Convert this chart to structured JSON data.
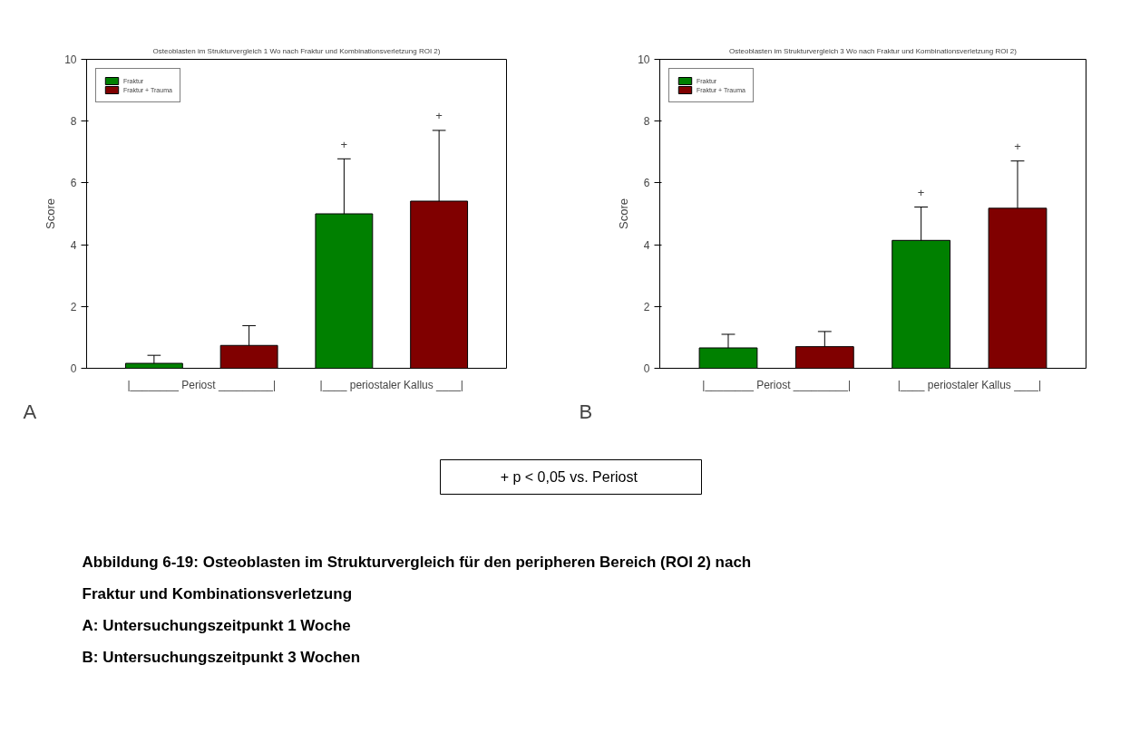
{
  "chart_data": [
    {
      "type": "bar",
      "title": "Osteoblasten im Strukturvergleich 1 Wo nach Fraktur und Kombinationsverletzung ROI 2)",
      "ylabel": "Score",
      "categories": [
        "|________ Periost _________|",
        "|____ periostaler Kallus ____|"
      ],
      "series": [
        {
          "name": "Fraktur",
          "color": "#008000",
          "values": [
            0.16,
            5.0
          ],
          "errors": [
            [
              0.16,
              0.42
            ],
            [
              5.0,
              6.78
            ]
          ]
        },
        {
          "name": "Fraktur + Trauma",
          "color": "#800000",
          "values": [
            0.74,
            5.41
          ],
          "errors": [
            [
              0.74,
              1.38
            ],
            [
              5.41,
              7.7
            ]
          ]
        }
      ],
      "ylim": [
        0,
        10
      ],
      "yticks": [
        0,
        2,
        4,
        6,
        8,
        10
      ],
      "legend": "top left",
      "grid": false,
      "annotations": [
        "+",
        "+",
        "A"
      ]
    },
    {
      "type": "bar",
      "title": "Osteoblasten im Strukturvergleich 3 Wo nach Fraktur und Kombinationsverletzung ROI 2)",
      "ylabel": "Score",
      "categories": [
        "|________ Periost _________|",
        "|____ periostaler Kallus ____|"
      ],
      "series": [
        {
          "name": "Fraktur",
          "color": "#008000",
          "values": [
            0.66,
            4.14
          ],
          "errors": [
            [
              0.66,
              1.1
            ],
            [
              4.14,
              5.22
            ]
          ]
        },
        {
          "name": "Fraktur + Trauma",
          "color": "#800000",
          "values": [
            0.7,
            5.18
          ],
          "errors": [
            [
              0.7,
              1.19
            ],
            [
              5.18,
              6.71
            ]
          ]
        }
      ],
      "ylim": [
        0,
        10
      ],
      "yticks": [
        0,
        2,
        4,
        6,
        8,
        10
      ],
      "legend": "top left",
      "grid": false,
      "annotations": [
        "+",
        "+",
        "B"
      ]
    },
    {
      "type": "other",
      "annotations": [
        "+  p < 0,05 vs. Periost",
        "Abbildung 6-19: Osteoblasten im Strukturvergleich für den peripheren Bereich (ROI 2) nach",
        "Fraktur und Kombinationsverletzung",
        "A: Untersuchungszeitpunkt 1 Woche",
        "B: Untersuchungszeitpunkt 3 Wochen"
      ]
    }
  ]
}
